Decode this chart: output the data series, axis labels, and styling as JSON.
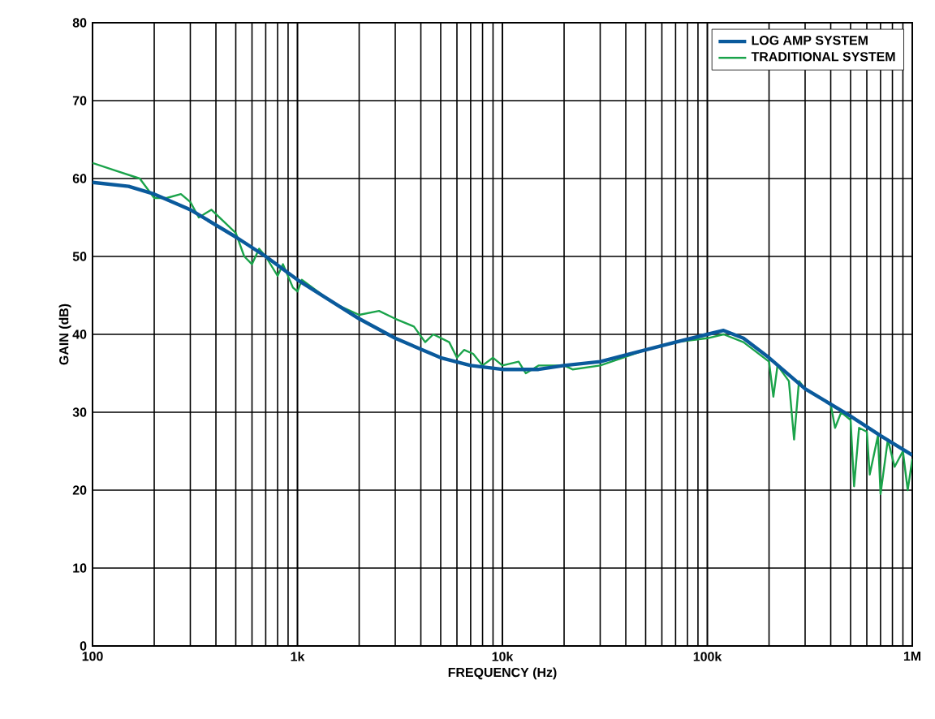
{
  "chart_data": {
    "type": "line",
    "xlabel": "FREQUENCY (Hz)",
    "ylabel": "GAIN (dB)",
    "log": "x",
    "xlim": [
      100,
      1000000
    ],
    "ylim": [
      0,
      80
    ],
    "xticks": [
      {
        "value": 100,
        "label": "100"
      },
      {
        "value": 1000,
        "label": "1k"
      },
      {
        "value": 10000,
        "label": "10k"
      },
      {
        "value": 100000,
        "label": "100k"
      },
      {
        "value": 1000000,
        "label": "1M"
      }
    ],
    "yticks": [
      0,
      10,
      20,
      30,
      40,
      50,
      60,
      70,
      80
    ],
    "grid": true,
    "legend": "top right",
    "line_style": "solid",
    "marker": "none",
    "series": [
      {
        "name": "LOG AMP SYSTEM",
        "color": "#0a5a9c",
        "x": [
          100,
          150,
          200,
          300,
          500,
          700,
          1000,
          2000,
          3000,
          5000,
          7000,
          10000,
          15000,
          20000,
          30000,
          50000,
          70000,
          100000,
          120000,
          150000,
          200000,
          300000,
          500000,
          700000,
          1000000
        ],
        "values": [
          59.5,
          59,
          58,
          56,
          52.5,
          50,
          47,
          42,
          39.5,
          37,
          36,
          35.5,
          35.5,
          36,
          36.5,
          38,
          39,
          40,
          40.5,
          39.5,
          37,
          33,
          29.5,
          27,
          24.5
        ]
      },
      {
        "name": "TRADITIONAL SYSTEM",
        "color": "#1aa34a",
        "x": [
          100,
          130,
          170,
          200,
          230,
          270,
          300,
          330,
          380,
          500,
          550,
          600,
          650,
          700,
          800,
          850,
          950,
          1000,
          1050,
          1500,
          2000,
          2500,
          3000,
          3700,
          4200,
          4600,
          5500,
          6000,
          6500,
          7200,
          8000,
          9000,
          10000,
          12000,
          13000,
          15000,
          20000,
          22000,
          30000,
          50000,
          70000,
          100000,
          120000,
          150000,
          200000,
          210000,
          220000,
          250000,
          265000,
          280000,
          300000,
          400000,
          420000,
          450000,
          500000,
          520000,
          550000,
          600000,
          620000,
          680000,
          700000,
          760000,
          820000,
          900000,
          950000,
          1000000
        ],
        "values": [
          62,
          61,
          60,
          57.5,
          57.5,
          58,
          57,
          55,
          56,
          53,
          50,
          49,
          51,
          50,
          47.5,
          49,
          46,
          45.5,
          47,
          44,
          42.5,
          43,
          42,
          41,
          39,
          40,
          39,
          37,
          38,
          37.5,
          36,
          37,
          36,
          36.5,
          35,
          36,
          36,
          35.5,
          36,
          38,
          39,
          39.5,
          40,
          39,
          36.5,
          32,
          36,
          34,
          26.5,
          34,
          33,
          31,
          28,
          30,
          29,
          20.5,
          28,
          27.5,
          22,
          27,
          19.5,
          26.5,
          23,
          25,
          20,
          24
        ]
      }
    ]
  }
}
